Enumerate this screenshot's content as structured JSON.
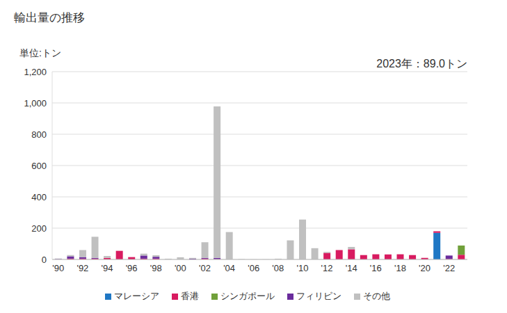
{
  "chart_data": {
    "type": "bar",
    "title": "輸出量の推移",
    "ylabel": "単位:トン",
    "annotation": "2023年：89.0トン",
    "stacked": true,
    "grid": true,
    "legend": "bottom",
    "categories": [
      "'90",
      null,
      "'92",
      null,
      "'94",
      null,
      "'96",
      null,
      "'98",
      null,
      "'00",
      null,
      "'02",
      null,
      "'04",
      null,
      "'06",
      null,
      "'08",
      null,
      "'10",
      null,
      "'12",
      null,
      "'14",
      null,
      "'16",
      null,
      "'18",
      null,
      "'20",
      null,
      "'22",
      null
    ],
    "ylim": [
      0,
      1200
    ],
    "yticks": [
      0,
      200,
      400,
      600,
      800,
      {
        "value": 1000,
        "label": "1,000"
      },
      {
        "value": 1200,
        "label": "1,200"
      }
    ],
    "series": [
      {
        "name": "マレーシア",
        "color": "#1f77c4",
        "values": [
          0,
          0,
          0,
          0,
          0,
          0,
          0,
          0,
          0,
          0,
          0,
          0,
          0,
          0,
          0,
          0,
          0,
          0,
          0,
          0,
          0,
          0,
          0,
          0,
          0,
          0,
          0,
          0,
          0,
          0,
          0,
          170,
          0,
          0
        ]
      },
      {
        "name": "香港",
        "color": "#d81b60",
        "values": [
          0,
          5,
          5,
          5,
          10,
          55,
          15,
          5,
          5,
          0,
          0,
          0,
          5,
          2,
          0,
          0,
          0,
          0,
          0,
          0,
          0,
          0,
          42,
          60,
          65,
          28,
          33,
          32,
          33,
          28,
          10,
          10,
          3,
          30
        ]
      },
      {
        "name": "シンガポール",
        "color": "#70a03a",
        "values": [
          0,
          0,
          0,
          0,
          0,
          0,
          0,
          0,
          0,
          0,
          0,
          0,
          0,
          0,
          0,
          0,
          0,
          0,
          0,
          0,
          0,
          0,
          0,
          0,
          0,
          0,
          0,
          0,
          0,
          0,
          0,
          0,
          0,
          59
        ]
      },
      {
        "name": "フィリピン",
        "color": "#6a2c9c",
        "values": [
          3,
          15,
          10,
          5,
          0,
          0,
          0,
          20,
          12,
          0,
          0,
          5,
          5,
          8,
          0,
          0,
          0,
          0,
          0,
          0,
          0,
          0,
          0,
          0,
          0,
          0,
          0,
          0,
          0,
          0,
          0,
          0,
          22,
          0
        ]
      },
      {
        "name": "その他",
        "color": "#c0c0c0",
        "values": [
          3,
          8,
          45,
          135,
          12,
          0,
          0,
          12,
          10,
          5,
          14,
          5,
          100,
          968,
          175,
          2,
          1,
          1,
          5,
          122,
          255,
          72,
          6,
          0,
          15,
          0,
          0,
          0,
          0,
          0,
          0,
          0,
          0,
          0
        ]
      }
    ]
  }
}
